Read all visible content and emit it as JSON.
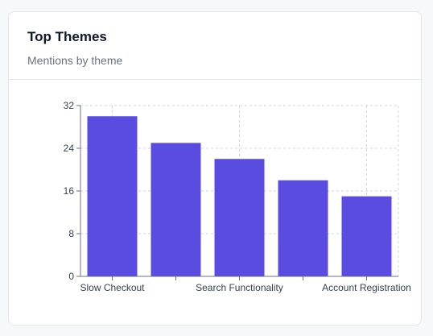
{
  "card": {
    "title": "Top Themes",
    "subtitle": "Mentions by theme"
  },
  "chart_data": {
    "type": "bar",
    "categories": [
      "Slow Checkout",
      "",
      "Search Functionality",
      "",
      "Account Registration"
    ],
    "values": [
      30,
      25,
      22,
      18,
      15
    ],
    "ylim": [
      0,
      32
    ],
    "yticks": [
      0,
      8,
      16,
      24,
      32
    ],
    "grid": true,
    "bar_color": "#5a4ce0",
    "xlabel": "",
    "ylabel": ""
  }
}
